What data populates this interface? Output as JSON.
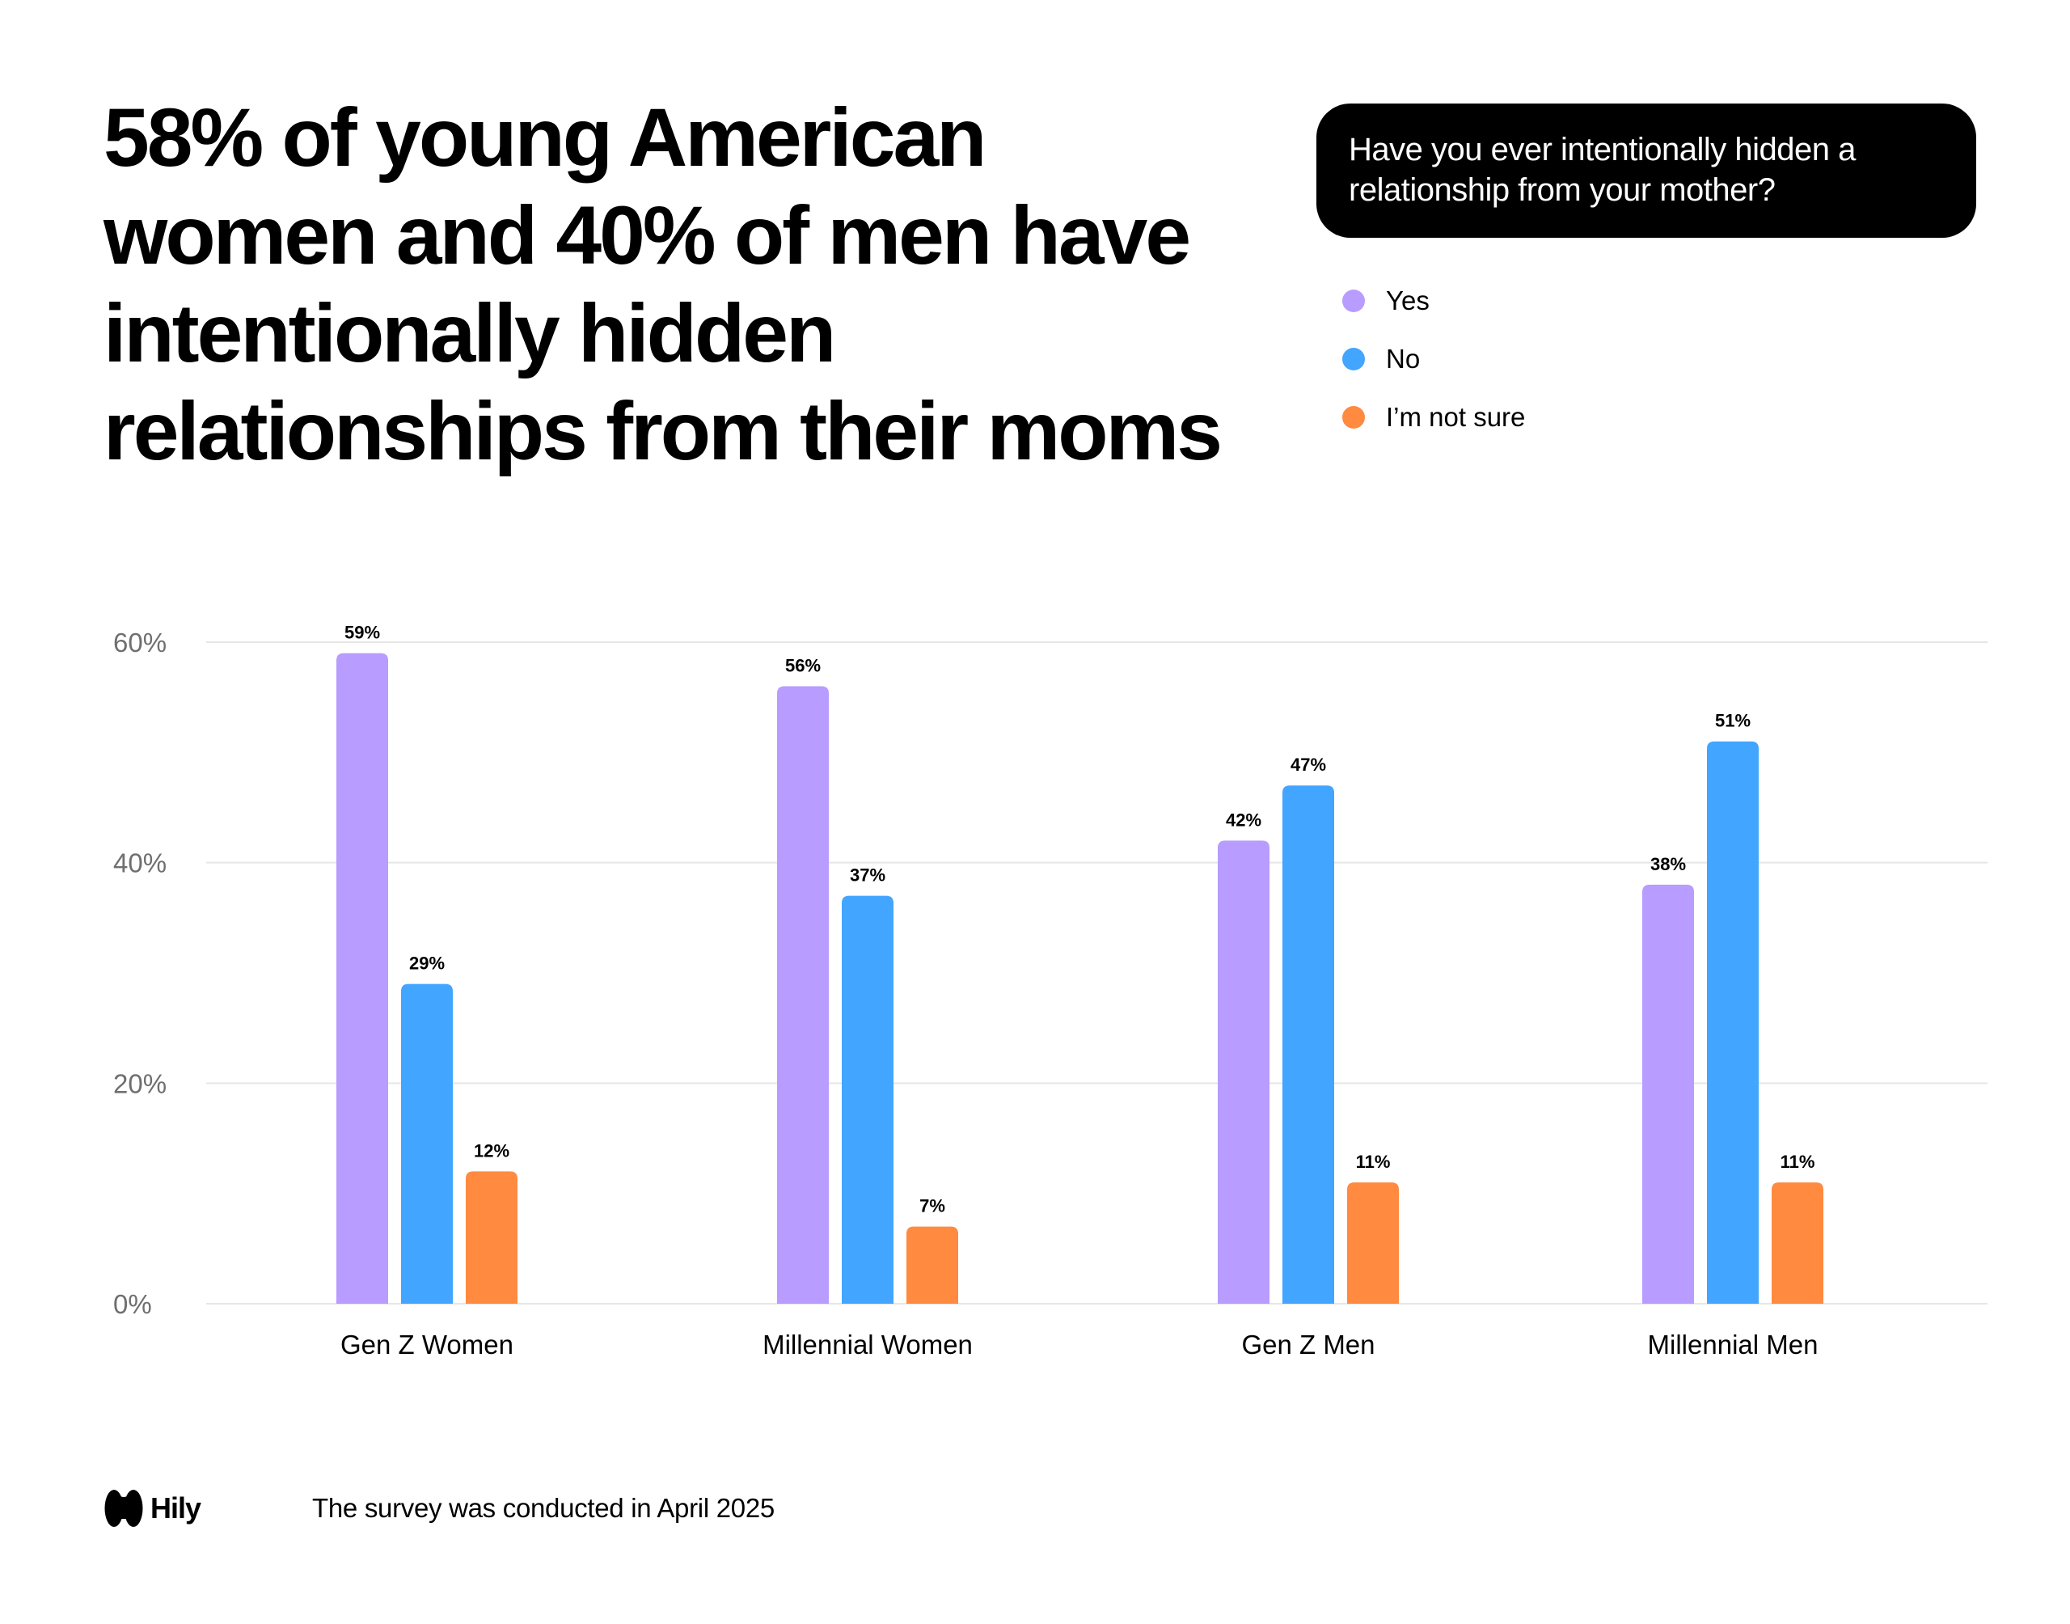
{
  "headline": {
    "lines": [
      "58% of young American",
      "women and 40% of men have",
      "intentionally hidden",
      "relationships from their moms"
    ]
  },
  "question": "Have you ever intentionally hidden a relationship from your mother?",
  "legend": [
    {
      "label": "Yes",
      "color": "#B89CFF"
    },
    {
      "label": "No",
      "color": "#42A5FF"
    },
    {
      "label": "I’m not sure",
      "color": "#FF8A40"
    }
  ],
  "chart_data": {
    "type": "bar",
    "title": "58% of young American women and 40% of men have intentionally hidden relationships from their moms",
    "subtitle": "Have you ever intentionally hidden a relationship from your mother?",
    "categories": [
      "Gen Z Women",
      "Millennial Women",
      "Gen Z Men",
      "Millennial Men"
    ],
    "series": [
      {
        "name": "Yes",
        "values": [
          59,
          56,
          42,
          38
        ],
        "color": "#B89CFF"
      },
      {
        "name": "No",
        "values": [
          29,
          37,
          47,
          51
        ],
        "color": "#42A5FF"
      },
      {
        "name": "I’m not sure",
        "values": [
          12,
          7,
          11,
          11
        ],
        "color": "#FF8A40"
      }
    ],
    "value_labels": [
      [
        "59%",
        "56%",
        "42%",
        "38%"
      ],
      [
        "29%",
        "37%",
        "47%",
        "51%"
      ],
      [
        "12%",
        "7%",
        "11%",
        "11%"
      ]
    ],
    "yticks": [
      0,
      20,
      40,
      60
    ],
    "ytick_labels": [
      "0%",
      "20%",
      "40%",
      "60%"
    ],
    "ylim": [
      0,
      60
    ],
    "xlabel": "",
    "ylabel": "",
    "grid": true,
    "legend_position": "top-right"
  },
  "footer": {
    "logo_text": "Hily",
    "note": "The survey was conducted in April 2025"
  }
}
